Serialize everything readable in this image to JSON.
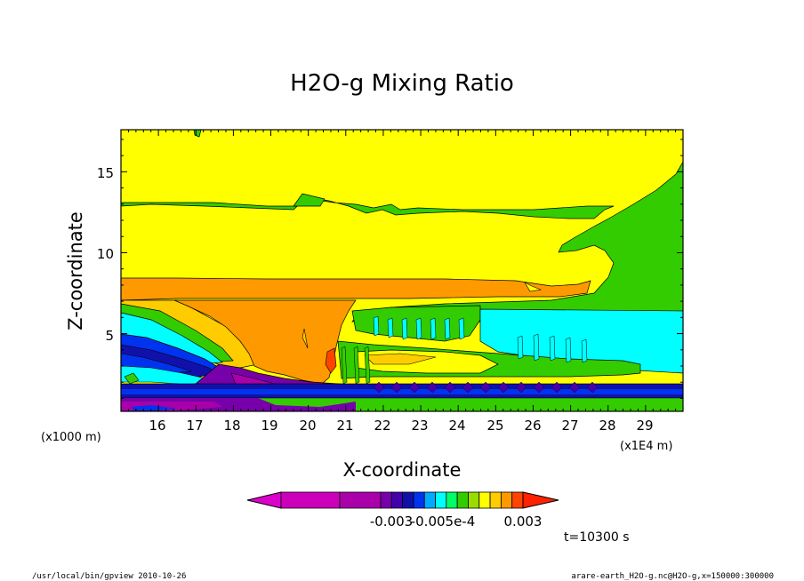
{
  "chart_data": {
    "type": "heatmap",
    "title": "H2O-g Mixing Ratio",
    "xlabel": "X-coordinate",
    "ylabel": "Z-coordinate",
    "x_unit_left": "(x1000 m)",
    "x_unit_right": "(x1E4 m)",
    "x_ticks": [
      "16",
      "17",
      "18",
      "19",
      "20",
      "21",
      "22",
      "23",
      "24",
      "25",
      "26",
      "27",
      "28",
      "29"
    ],
    "y_ticks": [
      "5",
      "10",
      "15"
    ],
    "xlim": [
      150000,
      300000
    ],
    "ylim": [
      0.2,
      17.6
    ],
    "grid": false,
    "colorbar": {
      "labels": [
        "-0.003",
        "-0.005e-4",
        "0.003"
      ],
      "colors": [
        "#cc00bb",
        "#aa00aa",
        "#7700aa",
        "#4400aa",
        "#1111aa",
        "#0033ee",
        "#00aaff",
        "#00ffff",
        "#00ff66",
        "#33cc00",
        "#99dd00",
        "#ffff00",
        "#ffcc00",
        "#ff9900",
        "#ff4400"
      ]
    },
    "regions": [
      {
        "name": "upper-atmosphere",
        "x_range": [
          150000,
          300000
        ],
        "z_range": [
          8.5,
          17.6
        ],
        "color": "#ffff00"
      },
      {
        "name": "green-layer-13km",
        "x_range": [
          150000,
          263000
        ],
        "z_range": [
          12.3,
          13.1
        ],
        "color": "#33cc00"
      },
      {
        "name": "green-upper-right",
        "x_range": [
          262000,
          300000
        ],
        "z_range": [
          7.0,
          15.5
        ],
        "color": "#33cc00"
      },
      {
        "name": "orange-band-8km",
        "x_range": [
          150000,
          278000
        ],
        "z_range": [
          7.2,
          8.5
        ],
        "color": "#ff9900"
      },
      {
        "name": "orange-plume",
        "x_range": [
          163000,
          213000
        ],
        "z_range": [
          1.8,
          7.2
        ],
        "color": "#ff9900"
      },
      {
        "name": "cyan-right",
        "x_range": [
          244000,
          300000
        ],
        "z_range": [
          2.2,
          6.4
        ],
        "color": "#00ffff"
      },
      {
        "name": "blue-left",
        "x_range": [
          150000,
          179000
        ],
        "z_range": [
          1.5,
          5.0
        ],
        "color": "#0033ee"
      },
      {
        "name": "violet-surface",
        "x_range": [
          177000,
          212000
        ],
        "z_range": [
          0.3,
          2.5
        ],
        "color": "#7700aa"
      },
      {
        "name": "surface-layer",
        "x_range": [
          150000,
          300000
        ],
        "z_range": [
          0.2,
          1.4
        ],
        "color": "#1111aa"
      }
    ]
  },
  "time_label": "t=10300 s",
  "footer": {
    "left": "/usr/local/bin/gpview  2010-10-26",
    "right": "arare-earth_H2O-g.nc@H2O-g,x=150000:300000"
  }
}
